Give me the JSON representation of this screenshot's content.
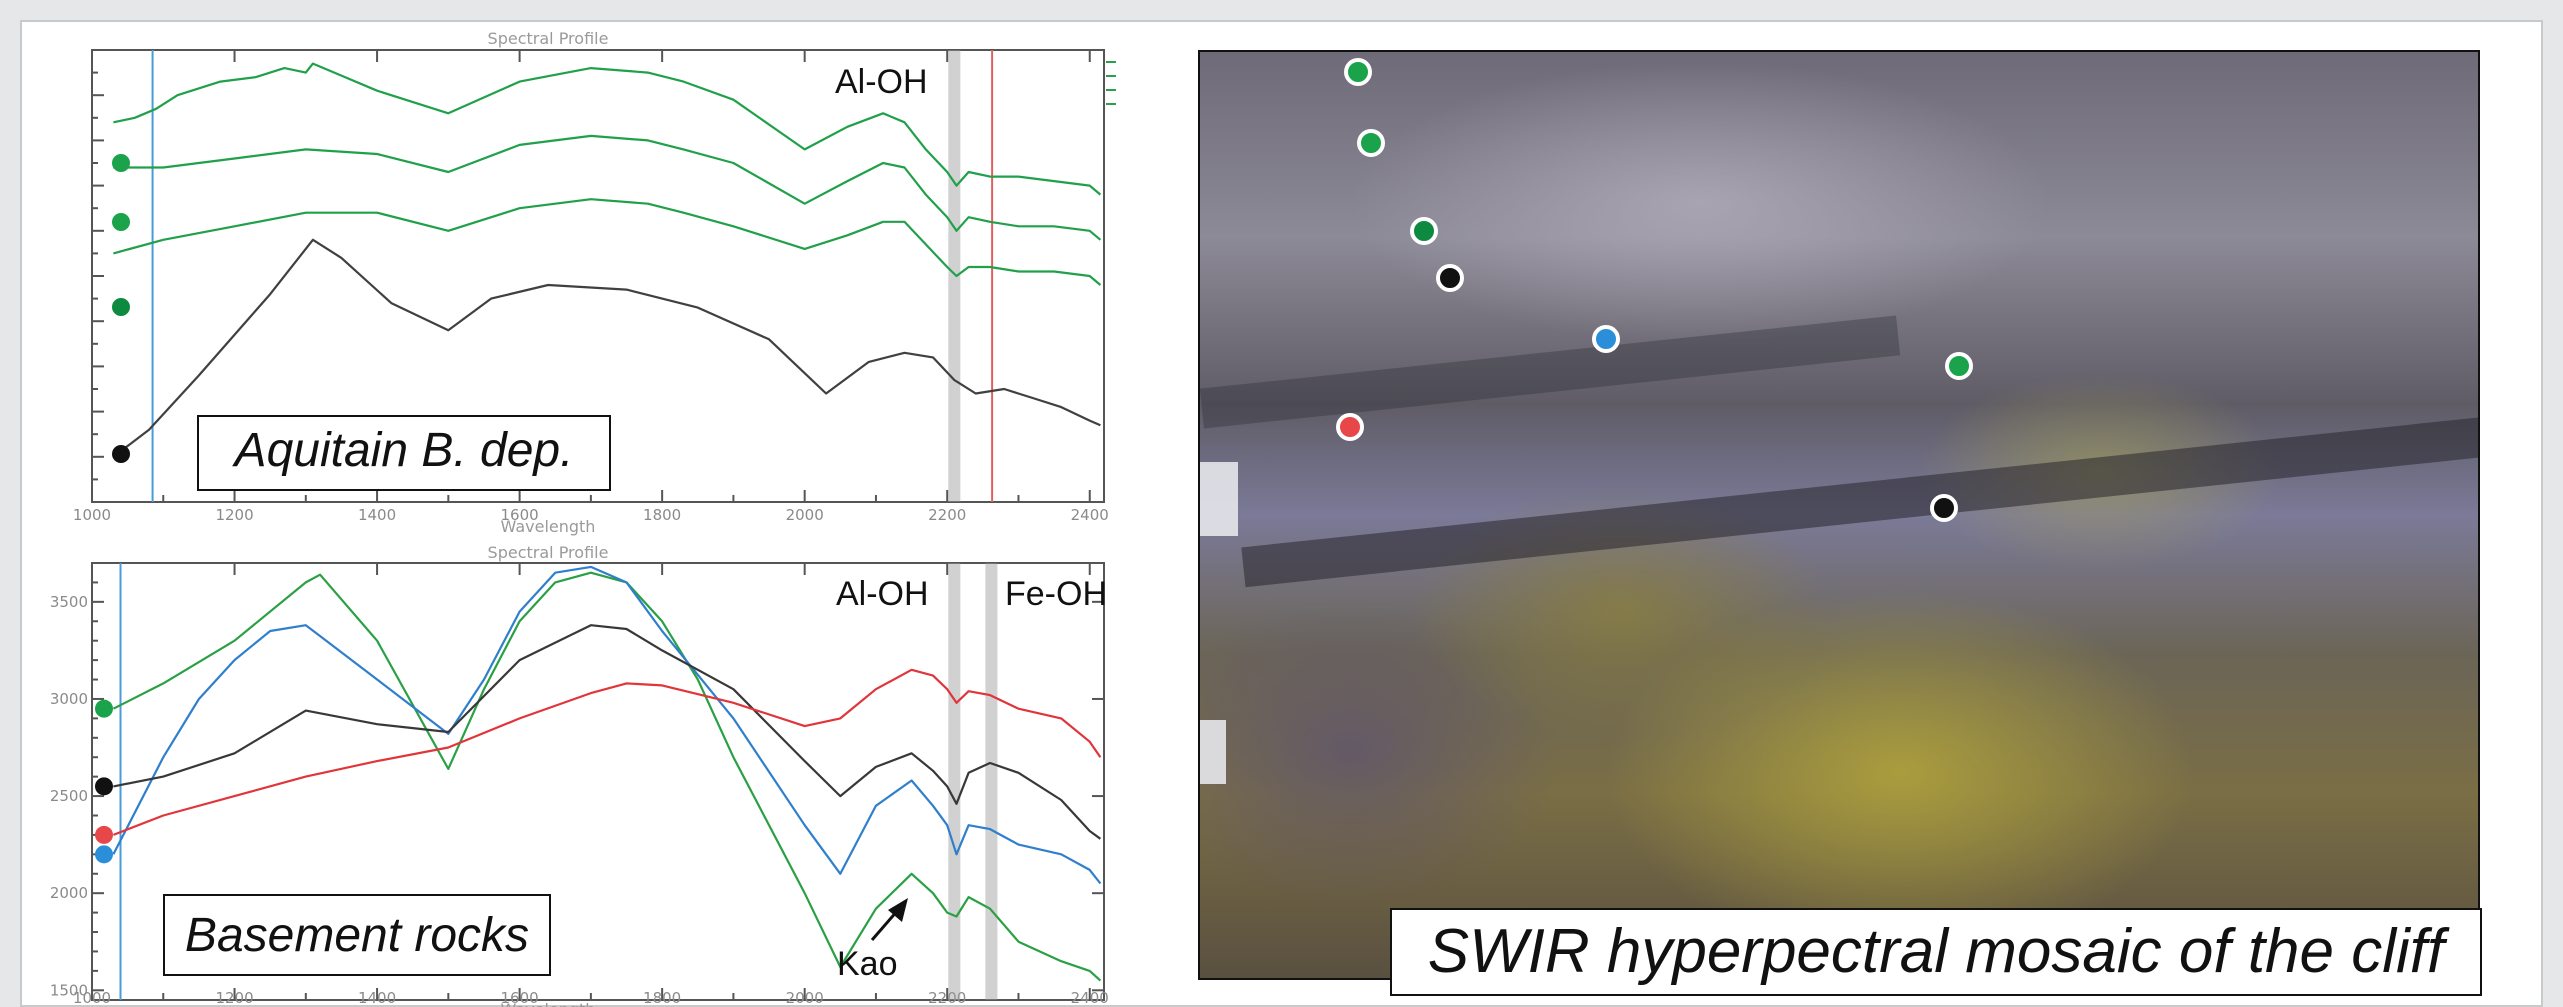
{
  "chart_data": [
    {
      "type": "line",
      "title": "Spectral Profile",
      "xlabel": "Wavelength",
      "ylabel": "",
      "xlim": [
        1000,
        2420
      ],
      "x_ticks": [
        "1000",
        "1200",
        "1400",
        "1600",
        "1800",
        "2000",
        "2200",
        "2400"
      ],
      "y_ticks": [],
      "ylim": [
        0,
        100
      ],
      "grid": false,
      "annotations": [
        "Al-OH"
      ],
      "box_label": "Aquitain B. dep.",
      "vlines": [
        {
          "x": 1085,
          "color": "#4a9cd6",
          "style": "line"
        },
        {
          "x": 2210,
          "color": "#9a9a9a",
          "style": "band"
        },
        {
          "x": 2263,
          "color": "#e06060",
          "style": "line"
        }
      ],
      "series": [
        {
          "color": "#21a04a",
          "marker_color": "#1aa34a",
          "x": [
            1030,
            1060,
            1090,
            1120,
            1180,
            1230,
            1270,
            1300,
            1310,
            1340,
            1400,
            1500,
            1600,
            1700,
            1780,
            1830,
            1900,
            2000,
            2060,
            2110,
            2140,
            2170,
            2200,
            2213,
            2230,
            2260,
            2300,
            2350,
            2400,
            2415
          ],
          "y": [
            84,
            85,
            87,
            90,
            93,
            94,
            96,
            95,
            97,
            95,
            91,
            86,
            93,
            96,
            95,
            93,
            89,
            78,
            83,
            86,
            84,
            78,
            73,
            70,
            73,
            72,
            72,
            71,
            70,
            68
          ]
        },
        {
          "color": "#21a04a",
          "marker_color": "#1aa34a",
          "x": [
            1030,
            1100,
            1200,
            1300,
            1400,
            1500,
            1600,
            1700,
            1780,
            1830,
            1900,
            2000,
            2060,
            2110,
            2140,
            2170,
            2200,
            2213,
            2230,
            2260,
            2300,
            2350,
            2400,
            2415
          ],
          "y": [
            74,
            74,
            76,
            78,
            77,
            73,
            79,
            81,
            80,
            78,
            75,
            66,
            71,
            75,
            74,
            68,
            63,
            60,
            63,
            62,
            61,
            61,
            60,
            58
          ]
        },
        {
          "color": "#21a04a",
          "marker_color": "#0e8a40",
          "x": [
            1030,
            1100,
            1200,
            1300,
            1400,
            1500,
            1600,
            1700,
            1780,
            1830,
            1900,
            2000,
            2060,
            2110,
            2140,
            2170,
            2200,
            2213,
            2230,
            2260,
            2300,
            2350,
            2400,
            2415
          ],
          "y": [
            55,
            58,
            61,
            64,
            64,
            60,
            65,
            67,
            66,
            64,
            61,
            56,
            59,
            62,
            62,
            57,
            52,
            50,
            52,
            52,
            51,
            51,
            50,
            48
          ]
        },
        {
          "color": "#404040",
          "marker_color": "#111111",
          "x": [
            1030,
            1080,
            1150,
            1250,
            1310,
            1350,
            1420,
            1500,
            1560,
            1640,
            1750,
            1850,
            1950,
            2030,
            2090,
            2140,
            2180,
            2210,
            2240,
            2280,
            2320,
            2360,
            2400,
            2415
          ],
          "y": [
            10,
            16,
            28,
            46,
            58,
            54,
            44,
            38,
            45,
            48,
            47,
            43,
            36,
            24,
            31,
            33,
            32,
            27,
            24,
            25,
            23,
            21,
            18,
            17
          ]
        }
      ]
    },
    {
      "type": "line",
      "title": "Spectral Profile",
      "xlabel": "Wavelength",
      "ylabel": "",
      "xlim": [
        1000,
        2420
      ],
      "ylim": [
        1450,
        3700
      ],
      "x_ticks": [
        "1000",
        "1200",
        "1400",
        "1600",
        "1800",
        "2000",
        "2200",
        "2400"
      ],
      "y_ticks": [
        "1500",
        "2000",
        "2500",
        "3000",
        "3500"
      ],
      "grid": false,
      "annotations": [
        "Al-OH",
        "Fe-OH",
        "Kao"
      ],
      "box_label": "Basement rocks",
      "vlines": [
        {
          "x": 1040,
          "color": "#4a9cd6",
          "style": "line"
        },
        {
          "x": 2210,
          "color": "#9a9a9a",
          "style": "band"
        },
        {
          "x": 2262,
          "color": "#9a9a9a",
          "style": "band"
        }
      ],
      "series": [
        {
          "color": "#2aa044",
          "marker_color": "#1aa34a",
          "x": [
            1030,
            1100,
            1200,
            1300,
            1320,
            1400,
            1500,
            1550,
            1600,
            1650,
            1700,
            1750,
            1800,
            1850,
            1900,
            2000,
            2050,
            2100,
            2150,
            2180,
            2200,
            2213,
            2230,
            2260,
            2300,
            2360,
            2400,
            2415
          ],
          "y": [
            2950,
            3080,
            3300,
            3600,
            3640,
            3300,
            2640,
            3050,
            3400,
            3600,
            3650,
            3600,
            3400,
            3100,
            2700,
            2000,
            1620,
            1920,
            2100,
            2000,
            1900,
            1880,
            1980,
            1920,
            1750,
            1650,
            1600,
            1550
          ]
        },
        {
          "color": "#2f7fcc",
          "marker_color": "#2a8fd8",
          "x": [
            1030,
            1100,
            1150,
            1200,
            1250,
            1300,
            1400,
            1500,
            1550,
            1600,
            1650,
            1700,
            1750,
            1800,
            1900,
            2000,
            2050,
            2100,
            2150,
            2180,
            2200,
            2213,
            2230,
            2260,
            2300,
            2360,
            2400,
            2415
          ],
          "y": [
            2200,
            2700,
            3000,
            3200,
            3350,
            3380,
            3100,
            2820,
            3100,
            3450,
            3650,
            3680,
            3600,
            3350,
            2900,
            2350,
            2100,
            2450,
            2580,
            2450,
            2350,
            2200,
            2350,
            2330,
            2250,
            2200,
            2120,
            2050
          ]
        },
        {
          "color": "#383838",
          "marker_color": "#111111",
          "x": [
            1030,
            1100,
            1200,
            1300,
            1400,
            1500,
            1600,
            1700,
            1750,
            1800,
            1900,
            2000,
            2050,
            2100,
            2150,
            2180,
            2200,
            2213,
            2230,
            2260,
            2300,
            2360,
            2400,
            2415
          ],
          "y": [
            2550,
            2600,
            2720,
            2940,
            2870,
            2830,
            3200,
            3380,
            3360,
            3250,
            3050,
            2680,
            2500,
            2650,
            2720,
            2630,
            2550,
            2460,
            2620,
            2670,
            2620,
            2480,
            2320,
            2280
          ]
        },
        {
          "color": "#e0353a",
          "marker_color": "#e8474a",
          "x": [
            1030,
            1100,
            1200,
            1300,
            1400,
            1500,
            1600,
            1700,
            1750,
            1800,
            1900,
            2000,
            2050,
            2100,
            2150,
            2180,
            2200,
            2213,
            2230,
            2260,
            2300,
            2360,
            2400,
            2415
          ],
          "y": [
            2300,
            2400,
            2500,
            2600,
            2680,
            2750,
            2900,
            3030,
            3080,
            3070,
            2980,
            2860,
            2900,
            3050,
            3150,
            3120,
            3050,
            2980,
            3040,
            3020,
            2950,
            2900,
            2780,
            2700
          ]
        }
      ]
    }
  ],
  "photo": {
    "caption": "SWIR hyperpectral mosaic of the cliff",
    "markers": [
      {
        "color": "#1aa34a",
        "fx": 0.123,
        "fy": 0.022
      },
      {
        "color": "#1aa34a",
        "fx": 0.133,
        "fy": 0.098
      },
      {
        "color": "#0e8a40",
        "fx": 0.175,
        "fy": 0.192
      },
      {
        "color": "#111111",
        "fx": 0.195,
        "fy": 0.243
      },
      {
        "color": "#2a8fd8",
        "fx": 0.317,
        "fy": 0.309
      },
      {
        "color": "#1aa34a",
        "fx": 0.592,
        "fy": 0.338
      },
      {
        "color": "#e8474a",
        "fx": 0.117,
        "fy": 0.403
      },
      {
        "color": "#111111",
        "fx": 0.58,
        "fy": 0.49
      }
    ]
  }
}
